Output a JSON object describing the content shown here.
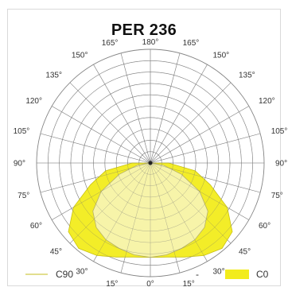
{
  "chart_data": {
    "type": "polar",
    "title": "PER 236",
    "angle_labels": {
      "left": [
        "180°",
        "165°",
        "150°",
        "135°",
        "120°",
        "105°",
        "90°",
        "75°",
        "60°",
        "45°",
        "30°",
        "15°",
        "0°"
      ],
      "right": [
        "180°",
        "165°",
        "150°",
        "135°",
        "120°",
        "105°",
        "90°",
        "75°",
        "60°",
        "45°",
        "30°",
        "15°",
        "0°"
      ]
    },
    "grid": true,
    "legend_position": "bottom",
    "series": [
      {
        "name": "C90",
        "color": "#f7f4c0",
        "angles_deg": [
          0,
          10,
          20,
          30,
          40,
          50,
          60,
          70,
          80,
          90
        ],
        "relative_intensity": [
          0.83,
          0.82,
          0.8,
          0.78,
          0.74,
          0.66,
          0.5,
          0.29,
          0.12,
          0.01
        ]
      },
      {
        "name": "C0",
        "color": "#f2ec1c",
        "angles_deg": [
          0,
          10,
          20,
          30,
          40,
          50,
          60,
          70,
          80,
          90
        ],
        "relative_intensity": [
          0.83,
          0.84,
          0.88,
          0.94,
          0.98,
          0.94,
          0.78,
          0.56,
          0.4,
          0.16
        ]
      }
    ]
  },
  "legend": {
    "left_label": "C90",
    "right_label": "C0",
    "separator": "-"
  }
}
